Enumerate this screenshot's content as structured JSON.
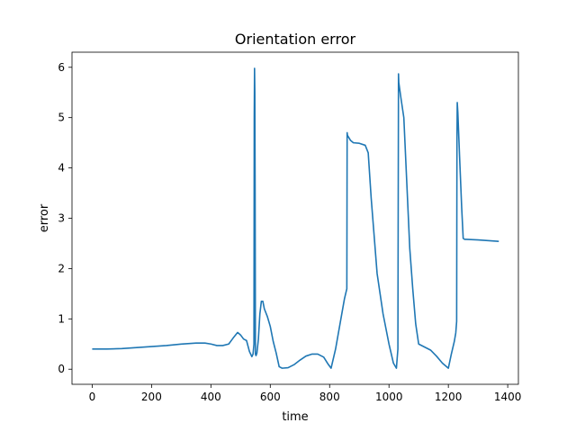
{
  "chart_data": {
    "type": "line",
    "title": "Orientation error",
    "xlabel": "time",
    "ylabel": "error",
    "xlim": [
      -68,
      1436
    ],
    "ylim": [
      -0.3,
      6.3
    ],
    "x_ticks": [
      0,
      200,
      400,
      600,
      800,
      1000,
      1200,
      1400
    ],
    "y_ticks": [
      0,
      1,
      2,
      3,
      4,
      5,
      6
    ],
    "grid": false,
    "line_color": "#1f77b4",
    "series": [
      {
        "x": [
          0,
          50,
          100,
          150,
          200,
          250,
          300,
          350,
          380,
          400,
          420,
          440,
          460,
          475,
          490,
          500,
          510,
          520,
          530,
          538,
          542,
          545,
          546,
          547,
          548,
          549,
          550,
          552,
          555,
          560,
          565,
          570,
          575,
          580,
          590,
          600,
          610,
          620,
          630,
          640,
          660,
          680,
          700,
          720,
          740,
          760,
          780,
          795,
          805,
          820,
          835,
          850,
          858,
          859,
          860,
          870,
          880,
          900,
          920,
          930,
          940,
          960,
          980,
          1000,
          1015,
          1025,
          1030,
          1032,
          1033,
          1040,
          1050,
          1060,
          1070,
          1080,
          1090,
          1100,
          1120,
          1140,
          1160,
          1180,
          1200,
          1210,
          1220,
          1225,
          1228,
          1229,
          1230,
          1232,
          1238,
          1245,
          1250,
          1255,
          1260,
          1300,
          1370
        ],
        "y": [
          0.4,
          0.4,
          0.41,
          0.43,
          0.45,
          0.47,
          0.5,
          0.52,
          0.52,
          0.5,
          0.47,
          0.47,
          0.5,
          0.62,
          0.73,
          0.68,
          0.6,
          0.57,
          0.35,
          0.25,
          0.3,
          0.5,
          5.0,
          5.98,
          5.5,
          3.5,
          0.3,
          0.27,
          0.32,
          0.6,
          1.1,
          1.35,
          1.35,
          1.2,
          1.05,
          0.85,
          0.55,
          0.32,
          0.05,
          0.02,
          0.03,
          0.09,
          0.18,
          0.26,
          0.3,
          0.3,
          0.24,
          0.1,
          0.02,
          0.4,
          0.9,
          1.4,
          1.6,
          4.7,
          4.65,
          4.55,
          4.5,
          4.49,
          4.45,
          4.3,
          3.4,
          1.9,
          1.1,
          0.5,
          0.12,
          0.02,
          0.4,
          5.87,
          5.7,
          5.4,
          5.0,
          3.7,
          2.4,
          1.6,
          0.9,
          0.5,
          0.44,
          0.38,
          0.26,
          0.12,
          0.02,
          0.3,
          0.55,
          0.72,
          0.95,
          4.5,
          5.3,
          5.1,
          4.2,
          3.2,
          2.6,
          2.58,
          2.58,
          2.57,
          2.54
        ]
      }
    ]
  }
}
